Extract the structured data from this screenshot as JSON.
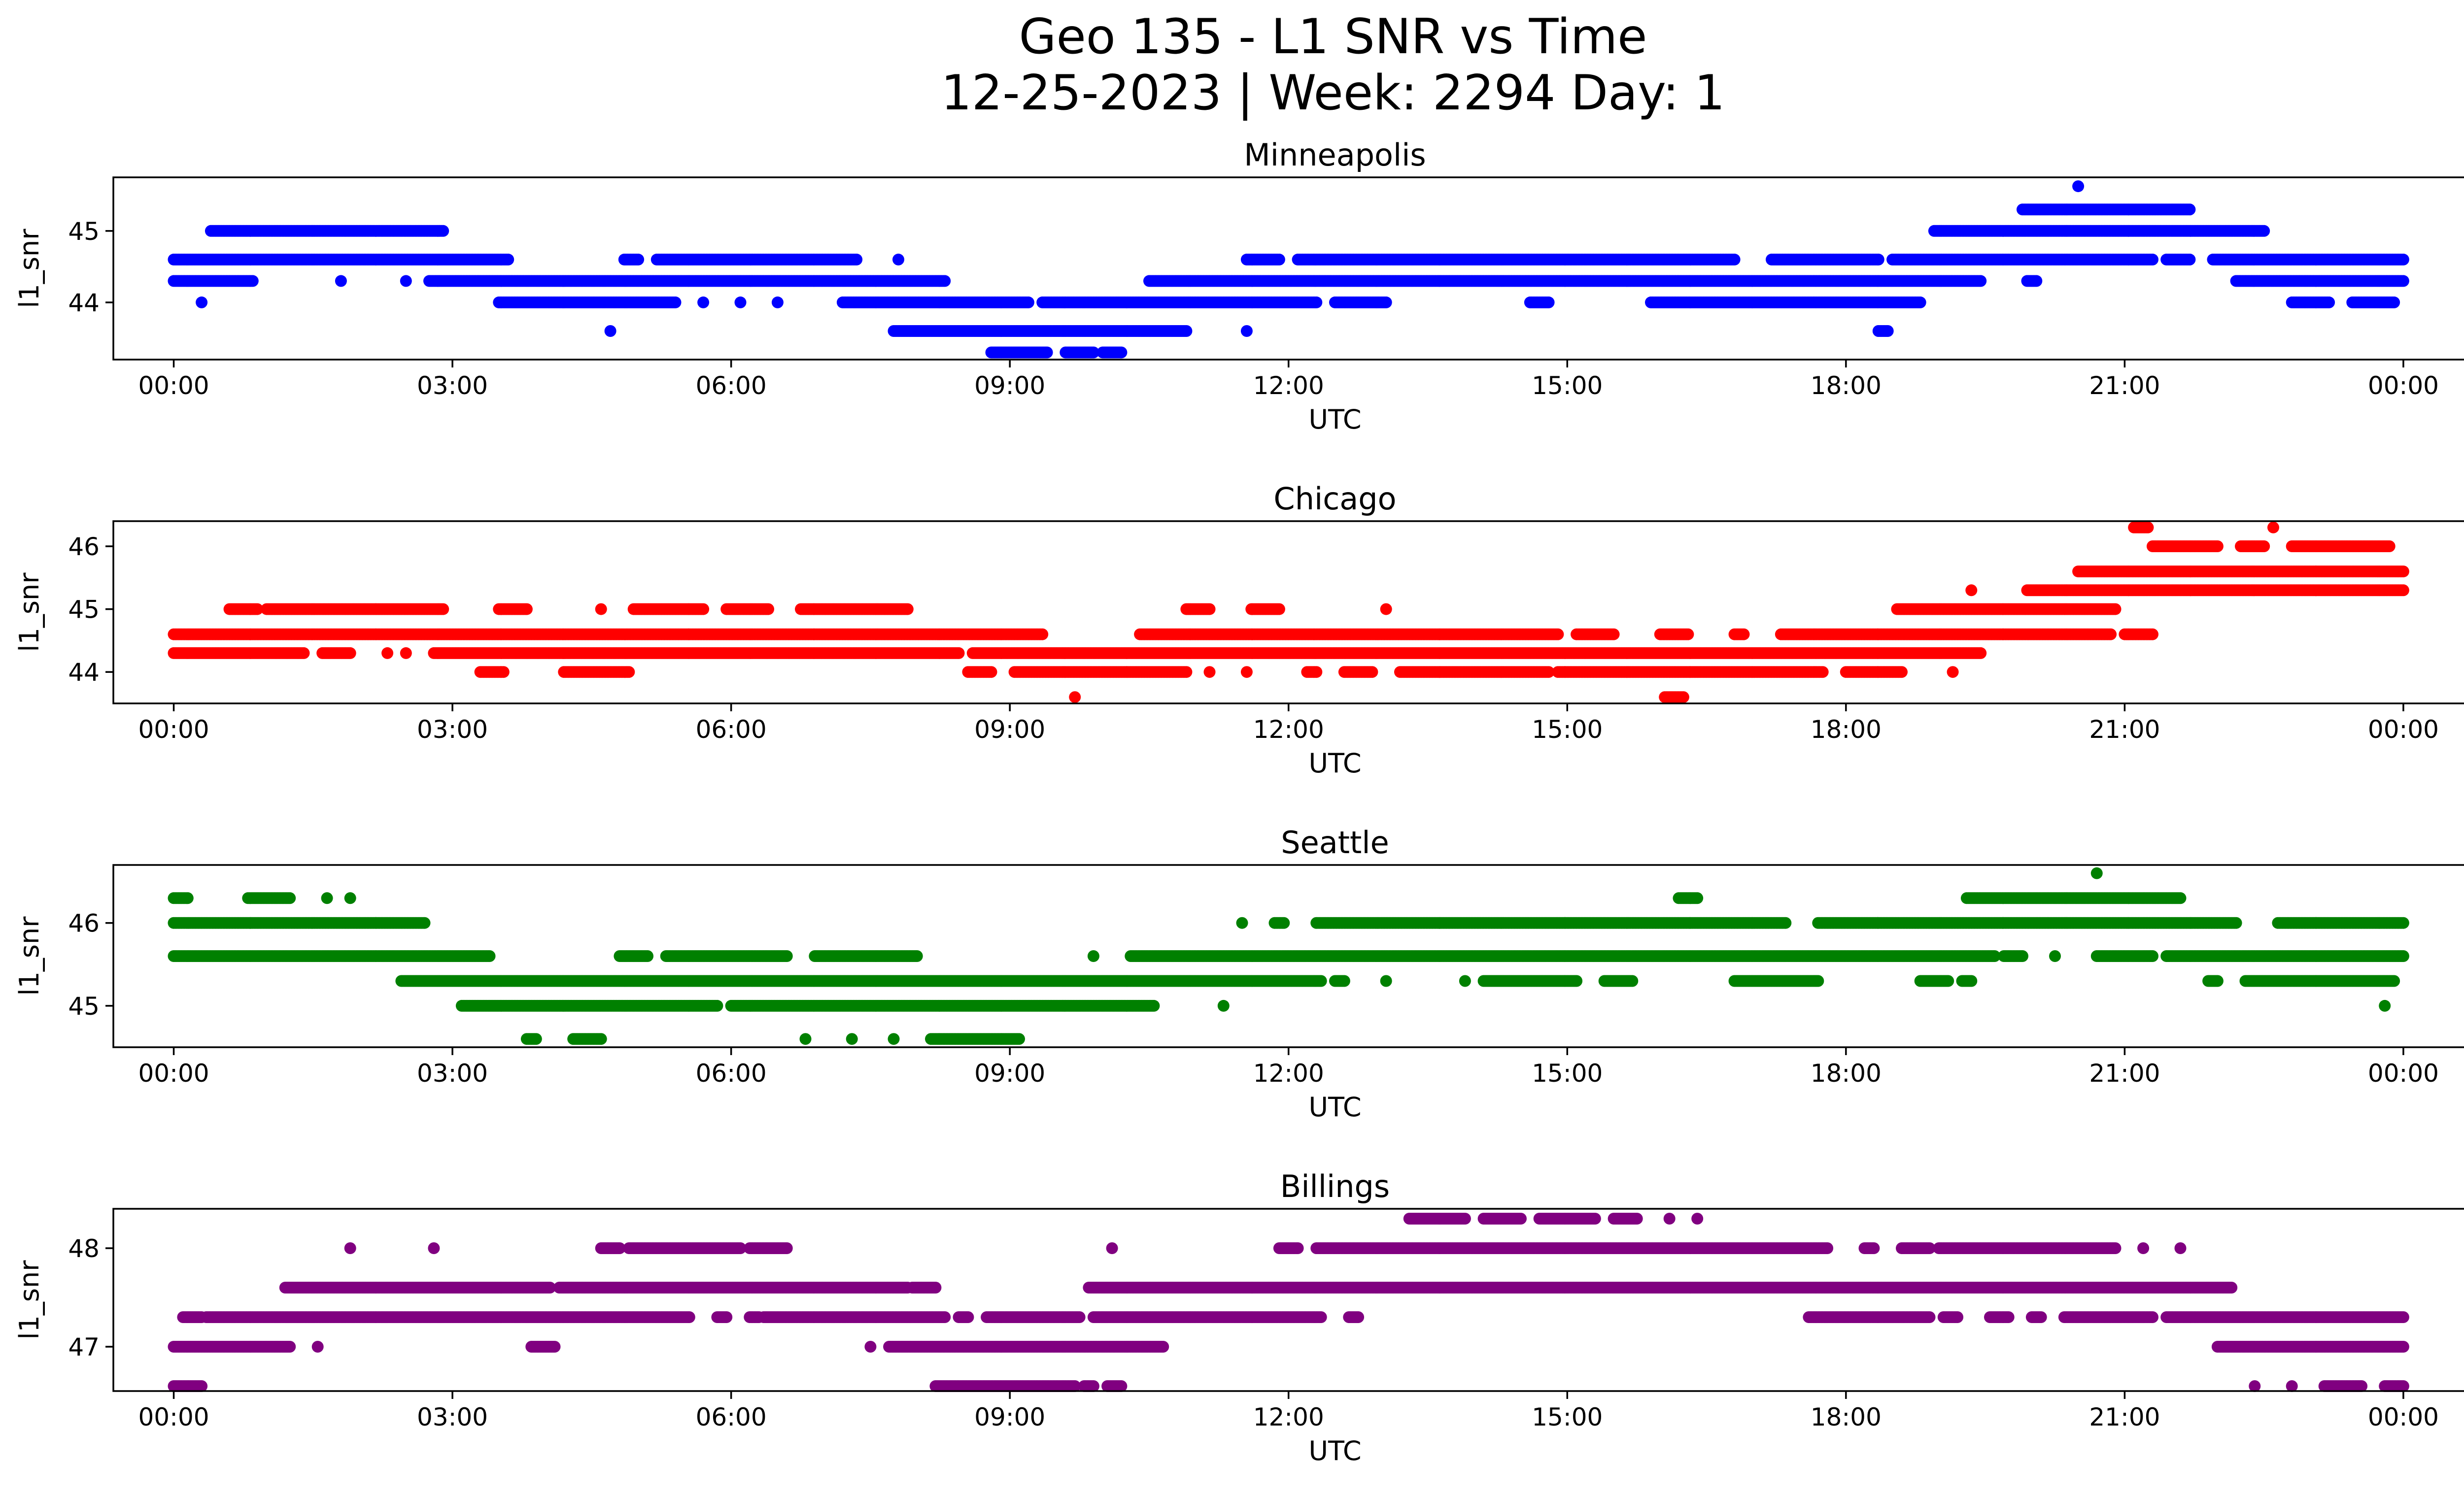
{
  "chart_data": {
    "type": "scatter",
    "title": "Geo 135 - L1 SNR vs Time",
    "subtitle": "12-25-2023 | Week: 2294 Day: 1",
    "x_tick_labels": [
      "00:00",
      "03:00",
      "06:00",
      "09:00",
      "12:00",
      "15:00",
      "18:00",
      "21:00",
      "00:00"
    ],
    "x_range_hours": [
      -0.65,
      25.65
    ],
    "panels": [
      {
        "title": "Minneapolis",
        "xlabel": "UTC",
        "ylabel": "l1_snr",
        "color": "#0000ff",
        "ylim": [
          43.2,
          45.75
        ],
        "yticks": [
          44,
          45
        ],
        "series": [
          {
            "y": 45.625,
            "segments": [
              [
                20.5,
                20.5
              ]
            ]
          },
          {
            "y": 45.3,
            "segments": [
              [
                19.9,
                21.7
              ]
            ]
          },
          {
            "y": 45.0,
            "segments": [
              [
                0.4,
                2.9
              ],
              [
                18.95,
                22.5
              ]
            ]
          },
          {
            "y": 44.6,
            "segments": [
              [
                0.0,
                3.6
              ],
              [
                4.85,
                5.0
              ],
              [
                5.2,
                7.35
              ],
              [
                7.8,
                7.8
              ],
              [
                11.55,
                11.9
              ],
              [
                12.1,
                16.8
              ],
              [
                17.2,
                18.35
              ],
              [
                18.5,
                21.3
              ],
              [
                21.45,
                21.7
              ],
              [
                21.95,
                24.0
              ]
            ]
          },
          {
            "y": 44.3,
            "segments": [
              [
                0.0,
                0.85
              ],
              [
                1.8,
                1.8
              ],
              [
                2.5,
                2.5
              ],
              [
                2.75,
                8.3
              ],
              [
                10.5,
                19.45
              ],
              [
                19.95,
                20.05
              ],
              [
                22.2,
                24.0
              ]
            ]
          },
          {
            "y": 44.0,
            "segments": [
              [
                0.3,
                0.3
              ],
              [
                3.5,
                5.4
              ],
              [
                5.7,
                5.7
              ],
              [
                6.1,
                6.1
              ],
              [
                6.5,
                6.5
              ],
              [
                7.2,
                9.2
              ],
              [
                9.35,
                12.3
              ],
              [
                12.5,
                13.05
              ],
              [
                14.6,
                14.8
              ],
              [
                15.9,
                18.8
              ],
              [
                22.8,
                23.2
              ],
              [
                23.45,
                23.9
              ]
            ]
          },
          {
            "y": 43.6,
            "segments": [
              [
                4.7,
                4.7
              ],
              [
                7.75,
                10.9
              ],
              [
                11.55,
                11.55
              ],
              [
                18.35,
                18.45
              ]
            ]
          },
          {
            "y": 43.3,
            "segments": [
              [
                8.8,
                9.4
              ],
              [
                9.6,
                9.9
              ],
              [
                10.0,
                10.2
              ]
            ]
          }
        ]
      },
      {
        "title": "Chicago",
        "xlabel": "UTC",
        "ylabel": "l1_snr",
        "color": "#ff0000",
        "ylim": [
          43.5,
          46.4
        ],
        "yticks": [
          44,
          45,
          46
        ],
        "series": [
          {
            "y": 46.3,
            "segments": [
              [
                21.1,
                21.25
              ],
              [
                22.6,
                22.6
              ]
            ]
          },
          {
            "y": 46.0,
            "segments": [
              [
                21.3,
                22.0
              ],
              [
                22.25,
                22.5
              ],
              [
                22.8,
                23.85
              ]
            ]
          },
          {
            "y": 45.6,
            "segments": [
              [
                20.5,
                24.0
              ]
            ]
          },
          {
            "y": 45.3,
            "segments": [
              [
                19.35,
                19.35
              ],
              [
                19.95,
                24.0
              ]
            ]
          },
          {
            "y": 45.0,
            "segments": [
              [
                0.6,
                0.9
              ],
              [
                1.0,
                2.9
              ],
              [
                3.5,
                3.8
              ],
              [
                4.6,
                4.6
              ],
              [
                4.95,
                5.7
              ],
              [
                5.95,
                6.4
              ],
              [
                6.75,
                7.9
              ],
              [
                10.9,
                11.15
              ],
              [
                11.6,
                11.9
              ],
              [
                13.05,
                13.05
              ],
              [
                18.55,
                20.9
              ]
            ]
          },
          {
            "y": 44.6,
            "segments": [
              [
                0.0,
                9.35
              ],
              [
                10.4,
                14.9
              ],
              [
                15.1,
                15.5
              ],
              [
                16.0,
                16.3
              ],
              [
                16.8,
                16.9
              ],
              [
                17.3,
                20.85
              ],
              [
                21.0,
                21.3
              ]
            ]
          },
          {
            "y": 44.3,
            "segments": [
              [
                0.0,
                1.4
              ],
              [
                1.6,
                1.9
              ],
              [
                2.3,
                2.3
              ],
              [
                2.5,
                2.5
              ],
              [
                2.8,
                8.45
              ],
              [
                8.6,
                19.45
              ]
            ]
          },
          {
            "y": 44.0,
            "segments": [
              [
                3.3,
                3.55
              ],
              [
                4.2,
                4.9
              ],
              [
                8.55,
                8.8
              ],
              [
                9.05,
                10.9
              ],
              [
                11.15,
                11.15
              ],
              [
                11.55,
                11.55
              ],
              [
                12.2,
                12.3
              ],
              [
                12.6,
                12.9
              ],
              [
                13.2,
                14.8
              ],
              [
                14.9,
                17.75
              ],
              [
                18.0,
                18.6
              ],
              [
                19.15,
                19.15
              ]
            ]
          },
          {
            "y": 43.6,
            "segments": [
              [
                9.7,
                9.7
              ],
              [
                16.05,
                16.25
              ]
            ]
          }
        ]
      },
      {
        "title": "Seattle",
        "xlabel": "UTC",
        "ylabel": "l1_snr",
        "color": "#008000",
        "ylim": [
          44.5,
          46.7
        ],
        "yticks": [
          45,
          46
        ],
        "series": [
          {
            "y": 46.6,
            "segments": [
              [
                20.7,
                20.7
              ]
            ]
          },
          {
            "y": 46.3,
            "segments": [
              [
                0.0,
                0.15
              ],
              [
                0.8,
                1.25
              ],
              [
                1.65,
                1.65
              ],
              [
                1.9,
                1.9
              ],
              [
                16.2,
                16.4
              ],
              [
                19.3,
                21.6
              ]
            ]
          },
          {
            "y": 46.0,
            "segments": [
              [
                0.0,
                2.7
              ],
              [
                11.5,
                11.5
              ],
              [
                11.85,
                11.95
              ],
              [
                12.3,
                17.35
              ],
              [
                17.7,
                22.2
              ],
              [
                22.65,
                24.0
              ]
            ]
          },
          {
            "y": 45.6,
            "segments": [
              [
                0.0,
                3.4
              ],
              [
                4.8,
                5.1
              ],
              [
                5.3,
                6.6
              ],
              [
                6.9,
                8.0
              ],
              [
                9.9,
                9.9
              ],
              [
                10.3,
                19.6
              ],
              [
                19.7,
                19.9
              ],
              [
                20.25,
                20.25
              ],
              [
                20.7,
                21.3
              ],
              [
                21.45,
                24.0
              ]
            ]
          },
          {
            "y": 45.3,
            "segments": [
              [
                2.45,
                12.35
              ],
              [
                12.5,
                12.6
              ],
              [
                13.05,
                13.05
              ],
              [
                13.9,
                13.9
              ],
              [
                14.1,
                15.1
              ],
              [
                15.4,
                15.7
              ],
              [
                16.8,
                17.7
              ],
              [
                18.8,
                19.1
              ],
              [
                19.25,
                19.35
              ],
              [
                21.9,
                22.0
              ],
              [
                22.3,
                23.9
              ]
            ]
          },
          {
            "y": 45.0,
            "segments": [
              [
                3.1,
                5.85
              ],
              [
                6.0,
                10.55
              ],
              [
                11.3,
                11.3
              ],
              [
                23.8,
                23.8
              ]
            ]
          },
          {
            "y": 44.6,
            "segments": [
              [
                3.8,
                3.9
              ],
              [
                4.3,
                4.6
              ],
              [
                6.8,
                6.8
              ],
              [
                7.3,
                7.3
              ],
              [
                7.75,
                7.75
              ],
              [
                8.15,
                9.1
              ]
            ]
          }
        ]
      },
      {
        "title": "Billings",
        "xlabel": "UTC",
        "ylabel": "l1_snr",
        "color": "#800080",
        "ylim": [
          46.55,
          48.4
        ],
        "yticks": [
          47,
          48
        ],
        "series": [
          {
            "y": 48.3,
            "segments": [
              [
                13.3,
                13.9
              ],
              [
                14.1,
                14.5
              ],
              [
                14.7,
                15.3
              ],
              [
                15.5,
                15.75
              ],
              [
                16.1,
                16.1
              ],
              [
                16.4,
                16.4
              ]
            ]
          },
          {
            "y": 48.0,
            "segments": [
              [
                1.9,
                1.9
              ],
              [
                2.8,
                2.8
              ],
              [
                4.6,
                4.8
              ],
              [
                4.9,
                6.1
              ],
              [
                6.2,
                6.6
              ],
              [
                10.1,
                10.1
              ],
              [
                11.9,
                12.1
              ],
              [
                12.3,
                17.8
              ],
              [
                18.2,
                18.3
              ],
              [
                18.6,
                18.9
              ],
              [
                19.0,
                20.9
              ],
              [
                21.2,
                21.2
              ],
              [
                21.6,
                21.6
              ]
            ]
          },
          {
            "y": 47.6,
            "segments": [
              [
                1.2,
                4.05
              ],
              [
                4.15,
                7.9
              ],
              [
                7.95,
                8.2
              ],
              [
                9.85,
                22.15
              ]
            ]
          },
          {
            "y": 47.3,
            "segments": [
              [
                0.1,
                0.3
              ],
              [
                0.35,
                5.55
              ],
              [
                5.85,
                5.95
              ],
              [
                6.2,
                6.3
              ],
              [
                6.35,
                8.3
              ],
              [
                8.45,
                8.55
              ],
              [
                8.75,
                9.75
              ],
              [
                9.9,
                12.35
              ],
              [
                12.65,
                12.75
              ],
              [
                17.6,
                18.9
              ],
              [
                19.05,
                19.2
              ],
              [
                19.55,
                19.75
              ],
              [
                20.0,
                20.1
              ],
              [
                20.35,
                21.3
              ],
              [
                21.45,
                24.0
              ]
            ]
          },
          {
            "y": 47.0,
            "segments": [
              [
                0.0,
                1.25
              ],
              [
                1.55,
                1.55
              ],
              [
                3.85,
                4.1
              ],
              [
                7.5,
                7.5
              ],
              [
                7.7,
                10.65
              ],
              [
                22.0,
                24.0
              ]
            ]
          },
          {
            "y": 46.6,
            "segments": [
              [
                0.0,
                0.3
              ],
              [
                8.2,
                9.7
              ],
              [
                9.8,
                9.9
              ],
              [
                10.05,
                10.2
              ],
              [
                22.4,
                22.4
              ],
              [
                22.8,
                22.8
              ],
              [
                23.15,
                23.55
              ],
              [
                23.8,
                24.0
              ]
            ]
          }
        ]
      }
    ]
  }
}
